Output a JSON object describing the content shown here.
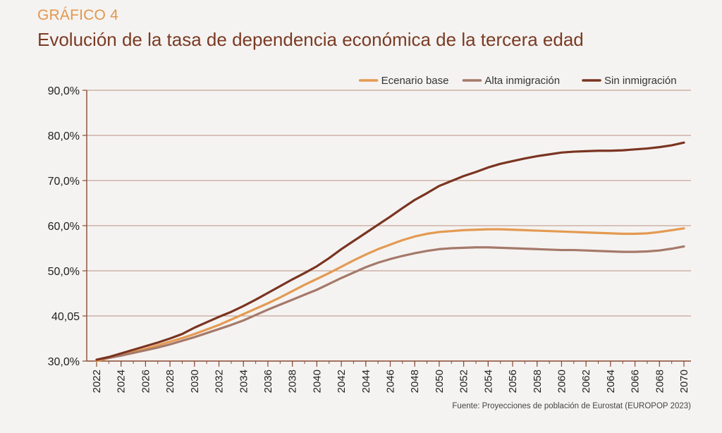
{
  "header": {
    "label": "GRÁFICO 4",
    "title": "Evolución de la tasa de dependencia económica de la tercera edad"
  },
  "footer": {
    "source": "Fuente: Proyecciones de población de Eurostat (EUROPOP 2023)"
  },
  "colors": {
    "background": "#f5f3f1",
    "axis": "#8a4a33",
    "grid": "#a5715c",
    "label": "#e2964e",
    "title": "#7a3b24"
  },
  "chart_data": {
    "type": "line",
    "title": "Evolución de la tasa de dependencia económica de la tercera edad",
    "xlabel": "",
    "ylabel": "",
    "ylim": [
      30,
      90
    ],
    "grid": true,
    "legend_position": "top-right",
    "y_tick_labels": [
      "30,0%",
      "40,05",
      "50,0%",
      "60,0%",
      "70,0%",
      "80,0%",
      "90,0%"
    ],
    "x": [
      "2022",
      "2023",
      "2024",
      "2025",
      "2026",
      "2027",
      "2028",
      "2029",
      "2030",
      "2031",
      "2032",
      "2033",
      "2034",
      "2035",
      "2036",
      "2037",
      "2038",
      "2039",
      "2040",
      "2041",
      "2042",
      "2043",
      "2044",
      "2045",
      "2046",
      "2047",
      "2048",
      "2049",
      "2050",
      "2051",
      "2052",
      "2053",
      "2054",
      "2055",
      "2056",
      "2057",
      "2058",
      "2059",
      "2060",
      "2061",
      "2062",
      "2063",
      "2064",
      "2065",
      "2066",
      "2067",
      "2068",
      "2069",
      "2070"
    ],
    "x_tick_labels": [
      "2022",
      "2024",
      "2026",
      "2028",
      "2030",
      "2032",
      "2034",
      "2036",
      "2038",
      "2040",
      "2042",
      "2044",
      "2046",
      "2048",
      "2050",
      "2052",
      "2054",
      "2056",
      "2058",
      "2060",
      "2062",
      "2064",
      "2066",
      "2068",
      "2070"
    ],
    "series": [
      {
        "name": "Ecenario base",
        "color": "#e39a52",
        "values": [
          30.0,
          30.7,
          31.3,
          32.0,
          32.7,
          33.5,
          34.3,
          35.1,
          36.0,
          37.0,
          38.0,
          39.2,
          40.4,
          41.6,
          42.8,
          44.1,
          45.5,
          46.9,
          48.2,
          49.5,
          50.9,
          52.3,
          53.6,
          54.8,
          55.8,
          56.8,
          57.6,
          58.2,
          58.6,
          58.8,
          59.0,
          59.1,
          59.2,
          59.2,
          59.1,
          59.0,
          58.9,
          58.8,
          58.7,
          58.6,
          58.5,
          58.4,
          58.3,
          58.2,
          58.2,
          58.3,
          58.6,
          59.0,
          59.4
        ]
      },
      {
        "name": "Alta inmigración",
        "color": "#a5796a",
        "values": [
          30.3,
          30.7,
          31.2,
          31.8,
          32.4,
          33.0,
          33.7,
          34.5,
          35.3,
          36.2,
          37.1,
          38.0,
          39.0,
          40.2,
          41.4,
          42.5,
          43.6,
          44.7,
          45.8,
          47.1,
          48.4,
          49.6,
          50.8,
          51.8,
          52.6,
          53.3,
          53.9,
          54.4,
          54.8,
          55.0,
          55.1,
          55.2,
          55.2,
          55.1,
          55.0,
          54.9,
          54.8,
          54.7,
          54.6,
          54.6,
          54.5,
          54.4,
          54.3,
          54.2,
          54.2,
          54.3,
          54.5,
          54.9,
          55.4
        ]
      },
      {
        "name": "Sin inmigración",
        "color": "#7a3421",
        "values": [
          30.3,
          30.9,
          31.7,
          32.5,
          33.3,
          34.1,
          35.0,
          36.0,
          37.4,
          38.6,
          39.8,
          40.9,
          42.2,
          43.6,
          45.1,
          46.6,
          48.1,
          49.5,
          51.0,
          52.8,
          54.8,
          56.6,
          58.4,
          60.2,
          62.0,
          63.9,
          65.7,
          67.2,
          68.8,
          69.9,
          71.0,
          71.9,
          72.9,
          73.7,
          74.3,
          74.9,
          75.4,
          75.8,
          76.2,
          76.4,
          76.5,
          76.6,
          76.6,
          76.7,
          76.9,
          77.1,
          77.4,
          77.8,
          78.4
        ]
      }
    ]
  }
}
